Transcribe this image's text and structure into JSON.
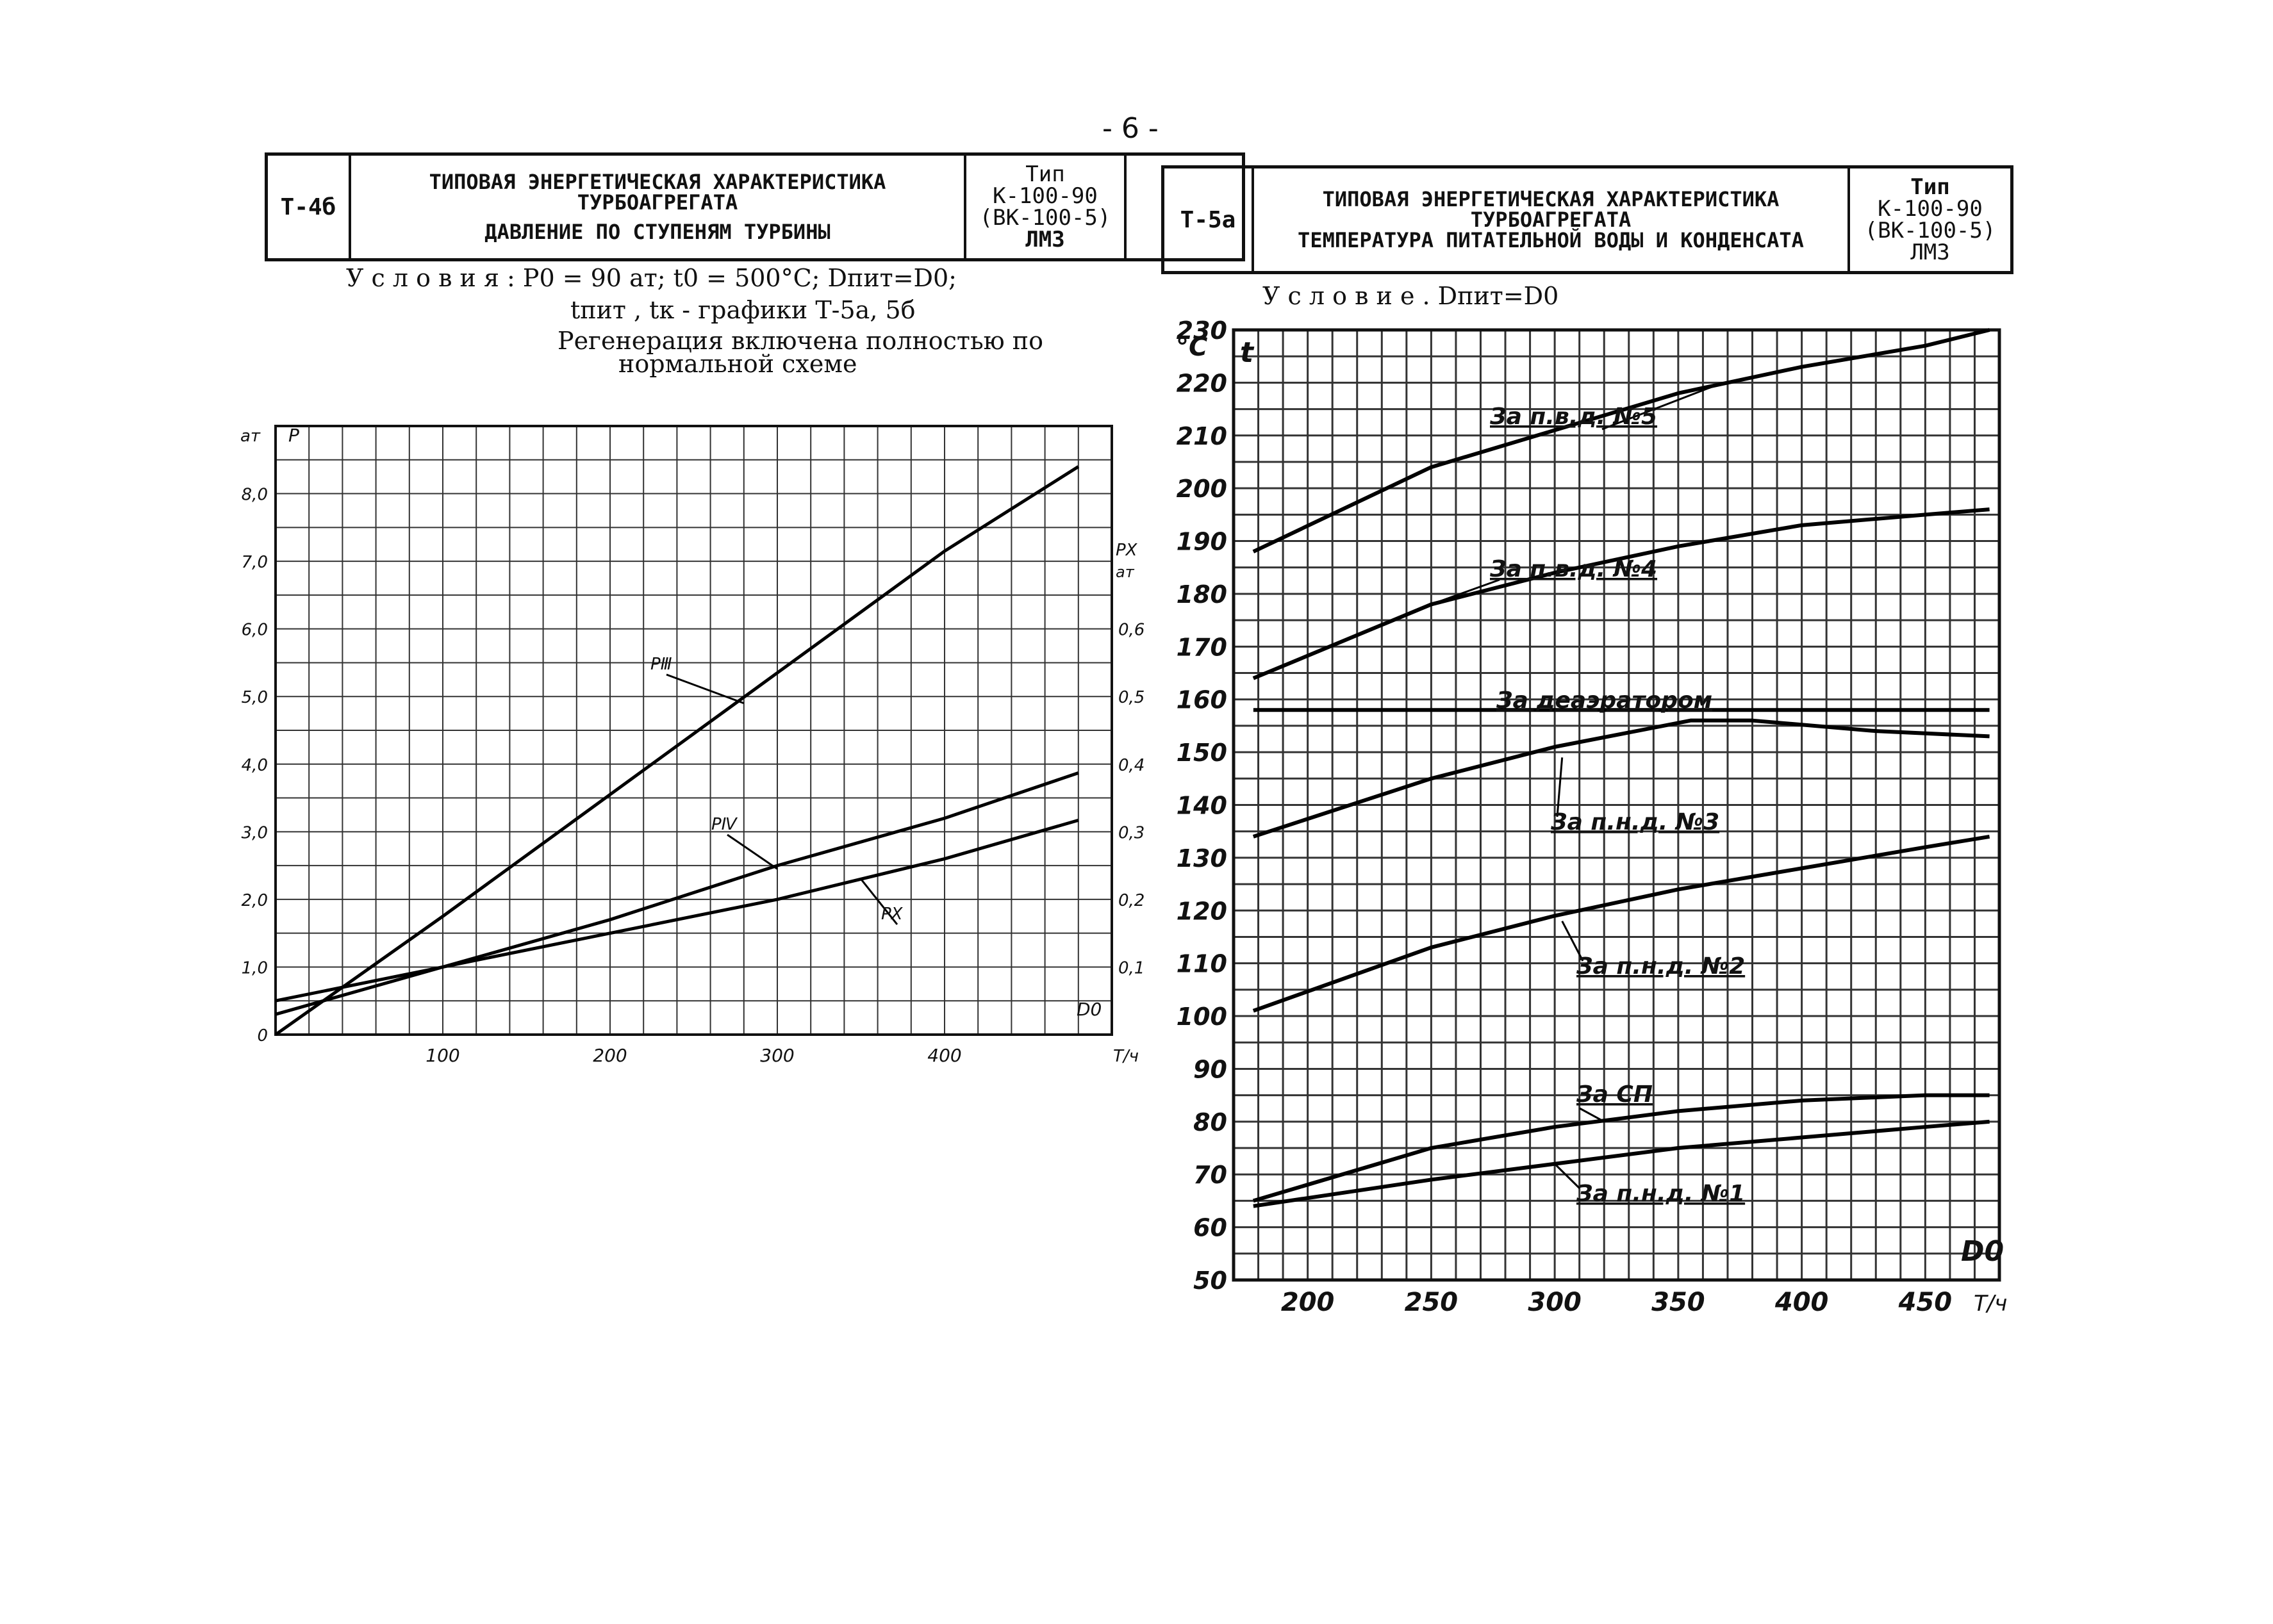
{
  "page": {
    "number": "- 6 -"
  },
  "left": {
    "code": "Т-4б",
    "title_1": "ТИПОВАЯ ЭНЕРГЕТИЧЕСКАЯ ХАРАКТЕРИСТИКА",
    "title_2": "ТУРБОАГРЕГАТА",
    "subtitle": "ДАВЛЕНИЕ ПО СТУПЕНЯМ ТУРБИНЫ",
    "type_label": "Тип",
    "type_1": "К-100-90",
    "type_2": "(ВК-100-5)",
    "type_3": "ЛМЗ",
    "conditions_1": "У с л о в и я :  P0 = 90 ат;  t0 = 500°C;  Dпит=D0;",
    "conditions_2": "tпит , tк - графики Т-5а, 5б",
    "conditions_3": "Регенерация включена полностью по",
    "conditions_4": "нормальной схеме"
  },
  "right": {
    "code": "Т-5а",
    "title_1": "ТИПОВАЯ ЭНЕРГЕТИЧЕСКАЯ ХАРАКТЕРИСТИКА",
    "title_2": "ТУРБОАГРЕГАТА",
    "subtitle": "ТЕМПЕРАТУРА ПИТАТЕЛЬНОЙ ВОДЫ И КОНДЕНСАТА",
    "type_label": "Тип",
    "type_1": "К-100-90",
    "type_2": "(ВК-100-5)",
    "type_3": "ЛМЗ",
    "condition": "У с л о в и е .  Dпит=D0"
  },
  "chart_data": [
    {
      "type": "line",
      "ylabel_unit": "ат",
      "ylabel": "P",
      "y2label": "PX",
      "y2label_unit": "ат",
      "xlabel": "D0",
      "xunit": "Т/ч",
      "xlim": [
        0,
        500
      ],
      "ylim": [
        0,
        90
      ],
      "y2lim": [
        0,
        0.9
      ],
      "x_ticks": [
        100,
        200,
        300,
        400
      ],
      "y_ticks": [
        0,
        10,
        20,
        30,
        40,
        50,
        60,
        70,
        80
      ],
      "y_tick_labels": [
        "0",
        "1,0",
        "2,0",
        "3,0",
        "4,0",
        "5,0",
        "6,0",
        "7,0",
        "8,0"
      ],
      "y2_ticks": [
        0.1,
        0.2,
        0.3,
        0.4,
        0.5,
        0.6
      ],
      "y2_tick_labels": [
        "0,1",
        "0,2",
        "0,3",
        "0,4",
        "0,5",
        "0,6"
      ],
      "grid": true,
      "series": [
        {
          "name": "PⅢ",
          "axis": "left",
          "x": [
            0,
            100,
            200,
            300,
            400,
            480
          ],
          "y": [
            0,
            17.5,
            35.5,
            53.5,
            71.5,
            84
          ]
        },
        {
          "name": "PⅣ",
          "axis": "right",
          "x": [
            0,
            100,
            200,
            300,
            400,
            480
          ],
          "y": [
            0.03,
            0.1,
            0.17,
            0.25,
            0.32,
            0.387
          ]
        },
        {
          "name": "PⅩ",
          "axis": "right",
          "x": [
            0,
            100,
            200,
            300,
            400,
            480
          ],
          "y": [
            0.05,
            0.1,
            0.15,
            0.2,
            0.26,
            0.317
          ]
        }
      ]
    },
    {
      "type": "line",
      "ylabel_unit": "°C",
      "ylabel": "t",
      "xlabel": "D0",
      "xunit": "Т/ч",
      "xlim": [
        170,
        480
      ],
      "ylim": [
        50,
        230
      ],
      "x_ticks": [
        200,
        250,
        300,
        350,
        400,
        450
      ],
      "y_ticks": [
        50,
        60,
        70,
        80,
        90,
        100,
        110,
        120,
        130,
        140,
        150,
        160,
        170,
        180,
        190,
        200,
        210,
        220,
        230
      ],
      "grid": true,
      "series": [
        {
          "name": "За п.в.д. №5",
          "x": [
            178,
            250,
            300,
            350,
            400,
            450,
            476
          ],
          "y": [
            188,
            204,
            211,
            218,
            223,
            227,
            230
          ]
        },
        {
          "name": "За п.в.д. №4",
          "x": [
            178,
            250,
            300,
            350,
            400,
            450,
            476
          ],
          "y": [
            164,
            178,
            184,
            189,
            193,
            195,
            196
          ]
        },
        {
          "name": "За деаэратором",
          "x": [
            178,
            476
          ],
          "y": [
            158,
            158
          ]
        },
        {
          "name": "За п.н.д. №3",
          "x": [
            178,
            250,
            300,
            355,
            380,
            430,
            476
          ],
          "y": [
            134,
            145,
            151,
            156,
            156,
            154,
            153
          ]
        },
        {
          "name": "За п.н.д. №2",
          "x": [
            178,
            250,
            300,
            350,
            400,
            450,
            476
          ],
          "y": [
            101,
            113,
            119,
            124,
            128,
            132,
            134
          ]
        },
        {
          "name": "За СП",
          "x": [
            178,
            250,
            300,
            350,
            400,
            450,
            476
          ],
          "y": [
            65,
            75,
            79,
            82,
            84,
            85,
            85
          ]
        },
        {
          "name": "За п.н.д. №1",
          "x": [
            178,
            250,
            300,
            350,
            400,
            450,
            476
          ],
          "y": [
            64,
            69,
            72,
            75,
            77,
            79,
            80
          ]
        }
      ]
    }
  ]
}
